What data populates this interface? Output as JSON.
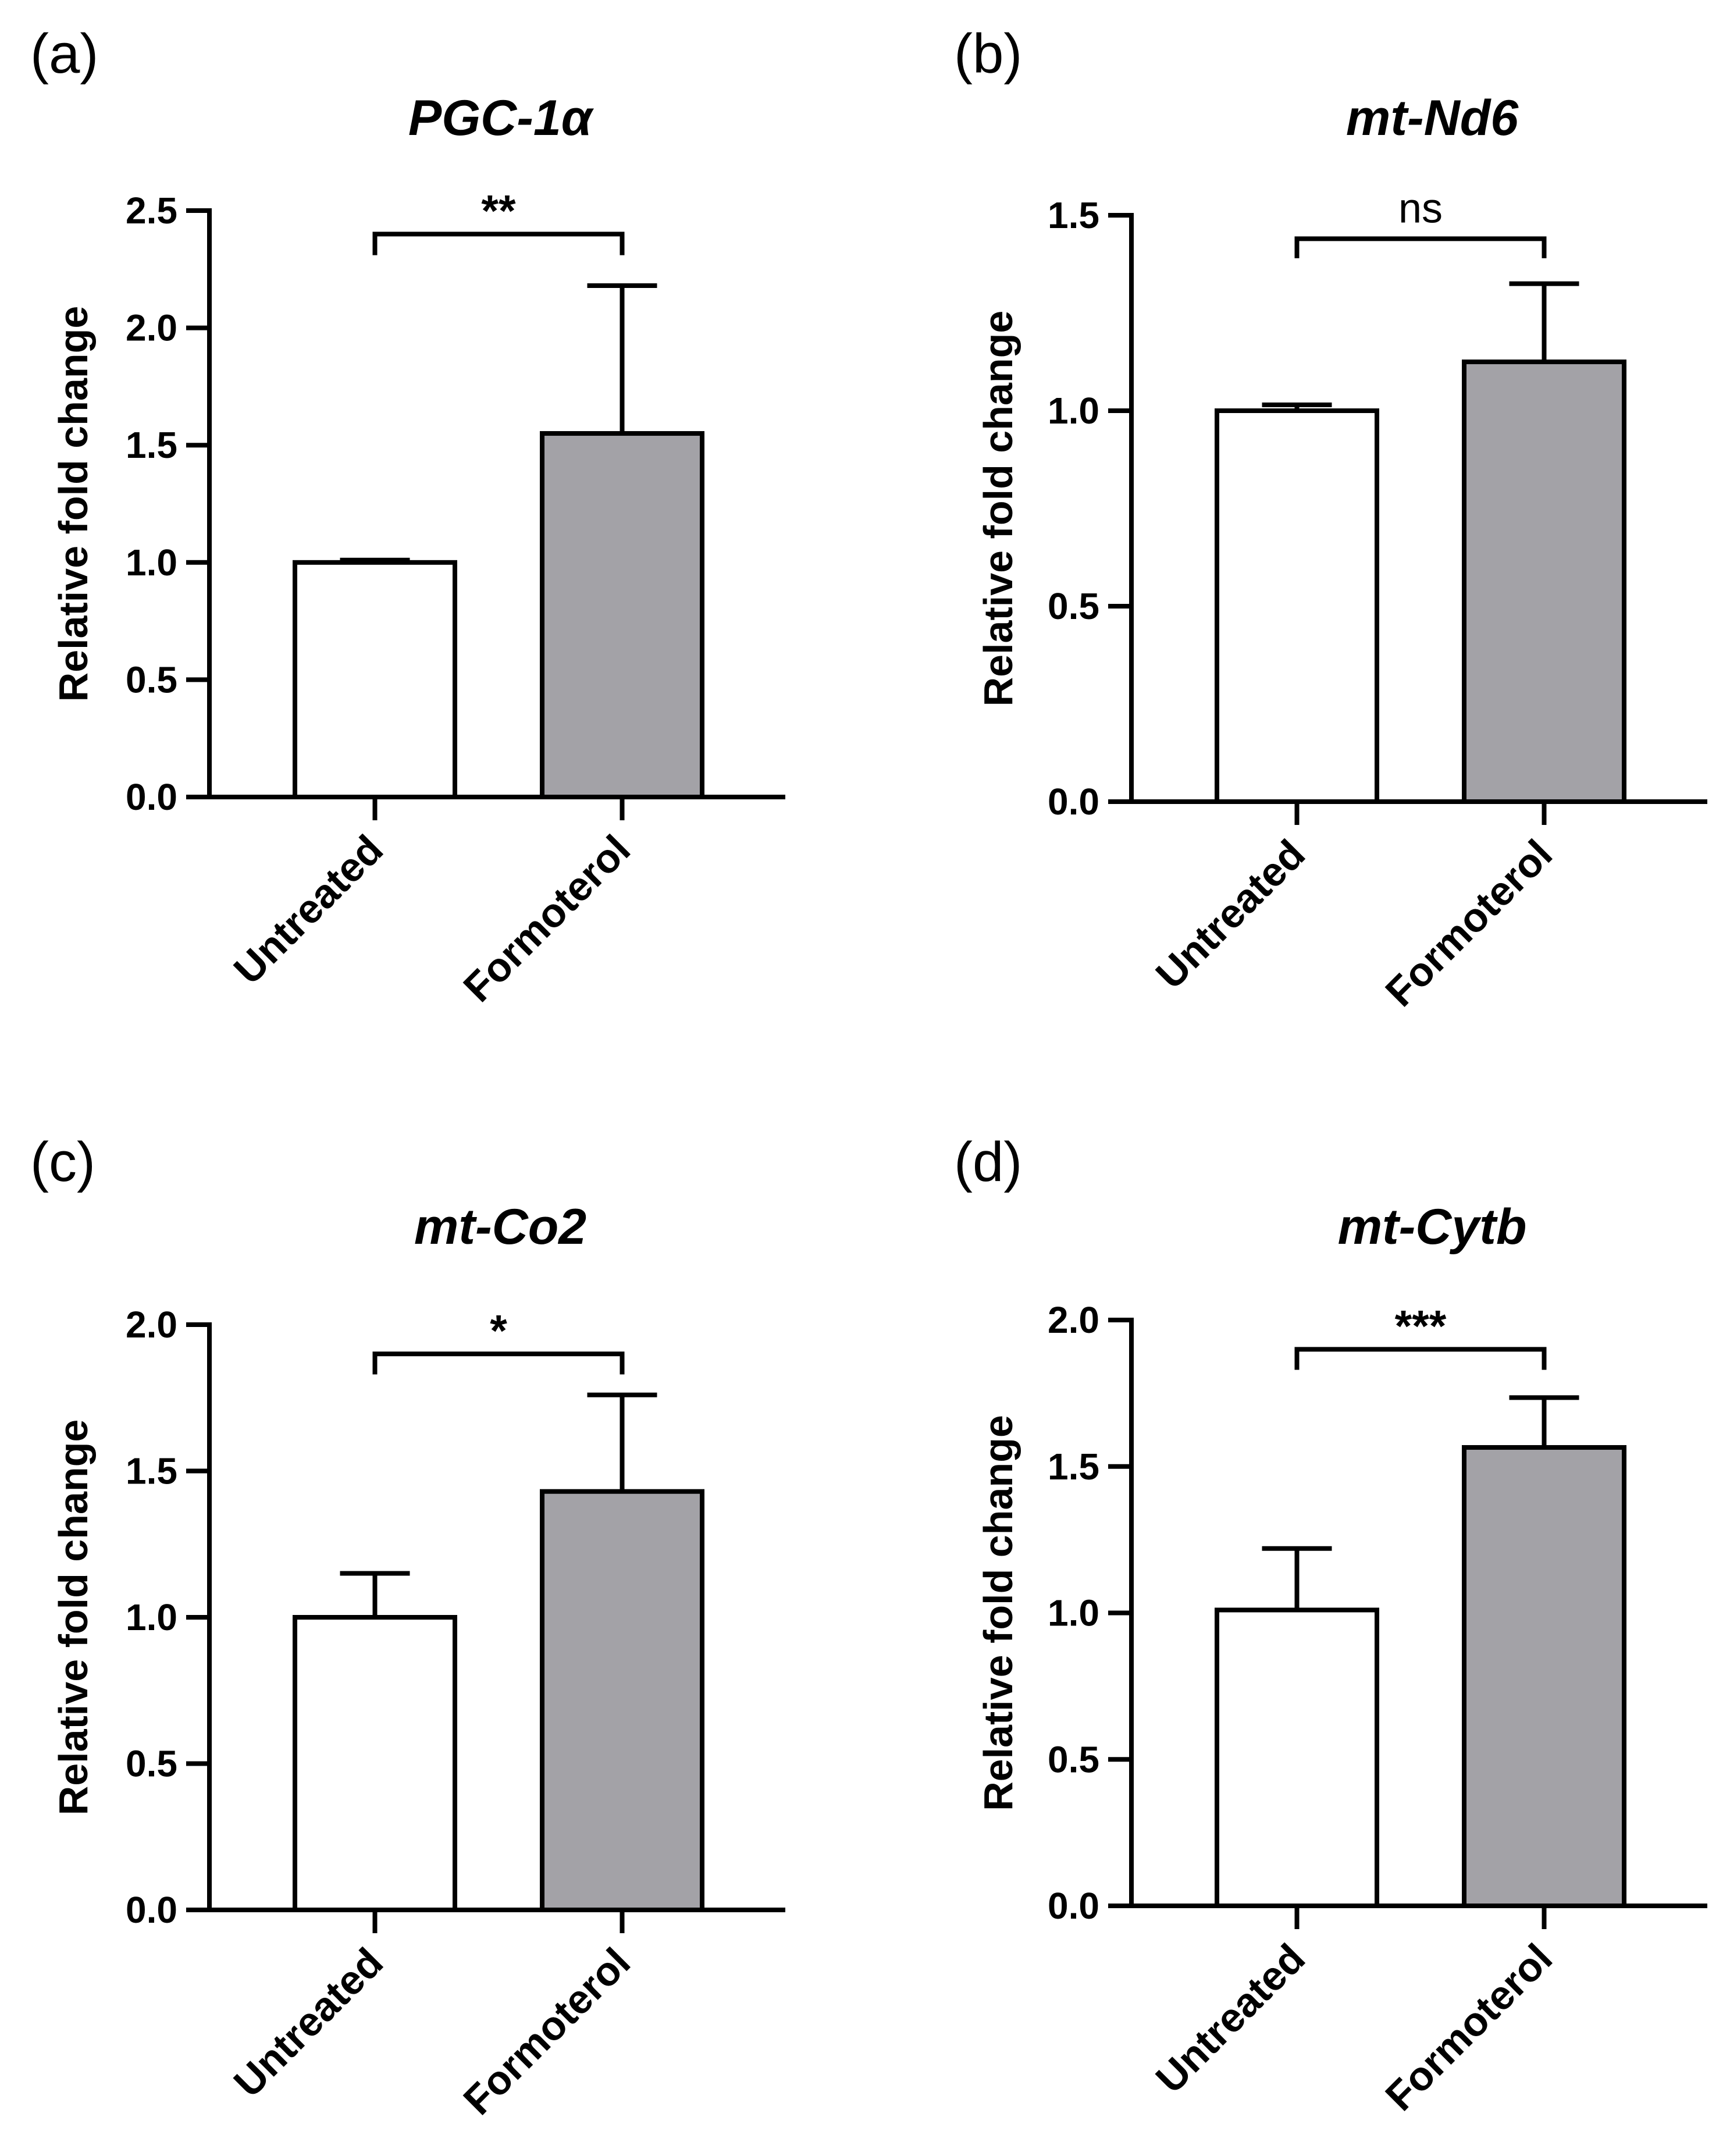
{
  "figure": {
    "y_axis_title": "Relative fold change",
    "colors": {
      "untreated_fill": "#ffffff",
      "formoterol_fill": "#a3a2a7",
      "stroke": "#000000"
    }
  },
  "chart_data": [
    {
      "type": "bar",
      "panel_label": "(a)",
      "title": "PGC-1α",
      "categories": [
        "Untreated",
        "Formoterol"
      ],
      "values": [
        1.0,
        1.55
      ],
      "errors": [
        0.01,
        0.63
      ],
      "ylabel": "Relative fold change",
      "ylim": [
        0,
        2.5
      ],
      "yticks": [
        0.0,
        0.5,
        1.0,
        1.5,
        2.0,
        2.5
      ],
      "ytick_labels": [
        "0.0",
        "0.5",
        "1.0",
        "1.5",
        "2.0",
        "2.5"
      ],
      "significance": {
        "label": "**",
        "level": 2.4,
        "drop": 0.09
      }
    },
    {
      "type": "bar",
      "panel_label": "(b)",
      "title": "mt-Nd6",
      "categories": [
        "Untreated",
        "Formoterol"
      ],
      "values": [
        1.0,
        1.125
      ],
      "errors": [
        0.015,
        0.2
      ],
      "ylabel": "Relative fold change",
      "ylim": [
        0,
        1.5
      ],
      "yticks": [
        0.0,
        0.5,
        1.0,
        1.5
      ],
      "ytick_labels": [
        "0.0",
        "0.5",
        "1.0",
        "1.5"
      ],
      "significance": {
        "label": "ns",
        "level": 1.44,
        "drop": 0.05
      }
    },
    {
      "type": "bar",
      "panel_label": "(c)",
      "title": "mt-Co2",
      "categories": [
        "Untreated",
        "Formoterol"
      ],
      "values": [
        1.0,
        1.43
      ],
      "errors": [
        0.15,
        0.33
      ],
      "ylabel": "Relative fold change",
      "ylim": [
        0,
        2.0
      ],
      "yticks": [
        0.0,
        0.5,
        1.0,
        1.5,
        2.0
      ],
      "ytick_labels": [
        "0.0",
        "0.5",
        "1.0",
        "1.5",
        "2.0"
      ],
      "significance": {
        "label": "*",
        "level": 1.9,
        "drop": 0.07
      }
    },
    {
      "type": "bar",
      "panel_label": "(d)",
      "title": "mt-Cytb",
      "categories": [
        "Untreated",
        "Formoterol"
      ],
      "values": [
        1.01,
        1.565
      ],
      "errors": [
        0.21,
        0.17
      ],
      "ylabel": "Relative fold change",
      "ylim": [
        0,
        2.0
      ],
      "yticks": [
        0.0,
        0.5,
        1.0,
        1.5,
        2.0
      ],
      "ytick_labels": [
        "0.0",
        "0.5",
        "1.0",
        "1.5",
        "2.0"
      ],
      "significance": {
        "label": "***",
        "level": 1.9,
        "drop": 0.07
      }
    }
  ]
}
